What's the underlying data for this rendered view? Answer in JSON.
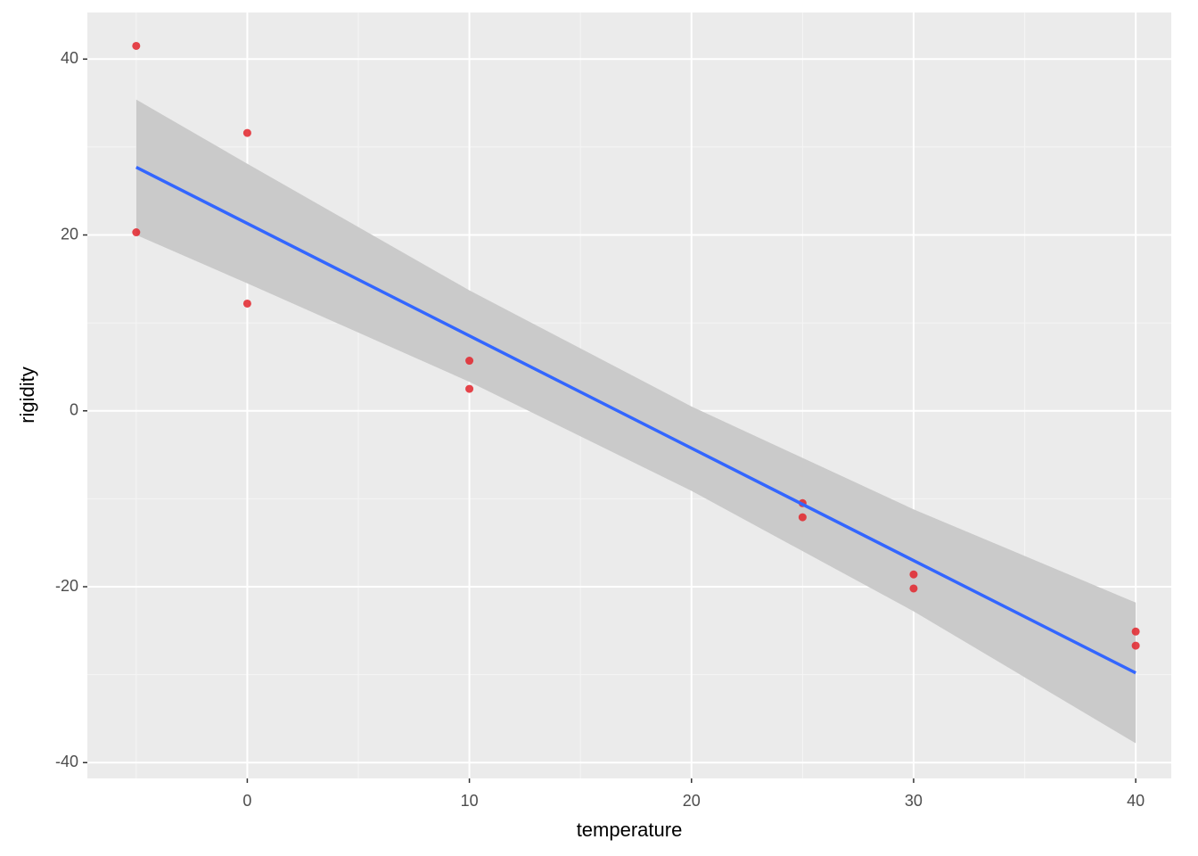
{
  "chart_data": {
    "type": "scatter",
    "x_label": "temperature",
    "y_label": "rigidity",
    "x": [
      -5,
      -5,
      0,
      0,
      10,
      10,
      25,
      25,
      30,
      30,
      40,
      40
    ],
    "values": [
      41.5,
      20.3,
      31.6,
      12.2,
      5.7,
      2.5,
      -10.5,
      -12.1,
      -18.6,
      -20.2,
      -25.1,
      -26.7
    ],
    "color": "#e3242b",
    "fit": {
      "x": [
        -5,
        40
      ],
      "values": [
        27.7,
        -29.8
      ],
      "color": "#3366ff"
    },
    "band": {
      "x": [
        -5,
        0,
        10,
        20,
        30,
        40
      ],
      "lower": [
        20.0,
        14.5,
        3.3,
        -9.1,
        -22.8,
        -37.8
      ],
      "upper": [
        35.4,
        28.1,
        13.7,
        0.5,
        -11.2,
        -21.8
      ],
      "color": "#cacaca"
    },
    "xlim": [
      -7.2,
      41.6
    ],
    "ylim": [
      -41.8,
      45.3
    ],
    "xticks": [
      0,
      10,
      20,
      30,
      40
    ],
    "yticks": [
      -40,
      -20,
      0,
      20,
      40
    ],
    "grid": true
  }
}
